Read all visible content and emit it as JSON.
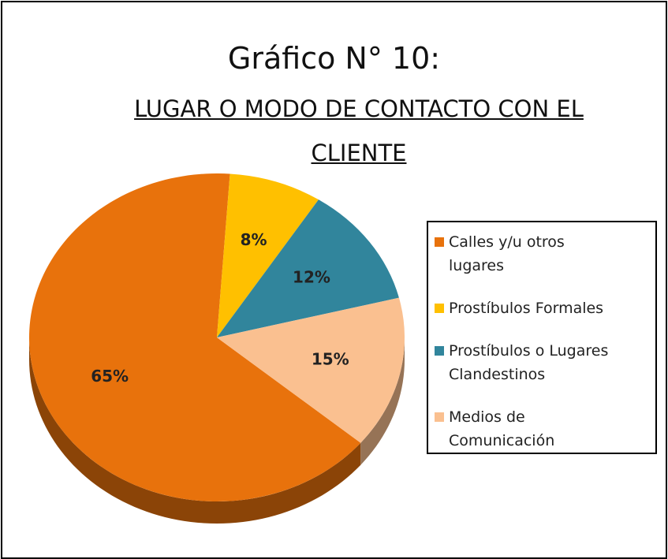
{
  "chart_data": {
    "type": "pie",
    "title": "Gráfico N° 10:",
    "subtitle": "LUGAR O MODO DE CONTACTO CON EL CLIENTE",
    "categories": [
      "Calles y/u otros lugares",
      "Prostíbulos Formales",
      "Prostíbulos o Lugares Clandestinos",
      "Medios de Comunicación"
    ],
    "values": [
      65,
      8,
      12,
      15
    ],
    "value_labels": [
      "65%",
      "8%",
      "12%",
      "15%"
    ],
    "colors": [
      "#e8720c",
      "#ffc000",
      "#31859c",
      "#fac090"
    ],
    "legend": "right"
  }
}
